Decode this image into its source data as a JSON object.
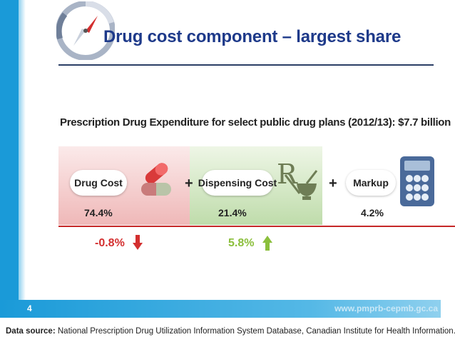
{
  "slide": {
    "title": "Drug cost component – largest share",
    "page_number": "4",
    "website": "www.pmprb-cepmb.gc.ca",
    "source_label": "Data source:",
    "source_text": "National Prescription Drug Utilization Information System Database, Canadian Institute for Health Information.",
    "logo_icon": "compass-icon"
  },
  "figure": {
    "subtitle": "Prescription Drug Expenditure for select public drug plans (2012/13): $7.7 billion",
    "components": [
      {
        "label": "Drug Cost",
        "share": "74.4%",
        "change": "-0.8%",
        "direction": "down",
        "icon": "pills-icon",
        "color": "#d32f2f"
      },
      {
        "label": "Dispensing Cost",
        "share": "21.4%",
        "change": "5.8%",
        "direction": "up",
        "icon": "rx-mortar-icon",
        "color": "#8bbf3c"
      },
      {
        "label": "Markup",
        "share": "4.2%",
        "icon": "calculator-icon"
      }
    ],
    "plus_sign": "+"
  }
}
